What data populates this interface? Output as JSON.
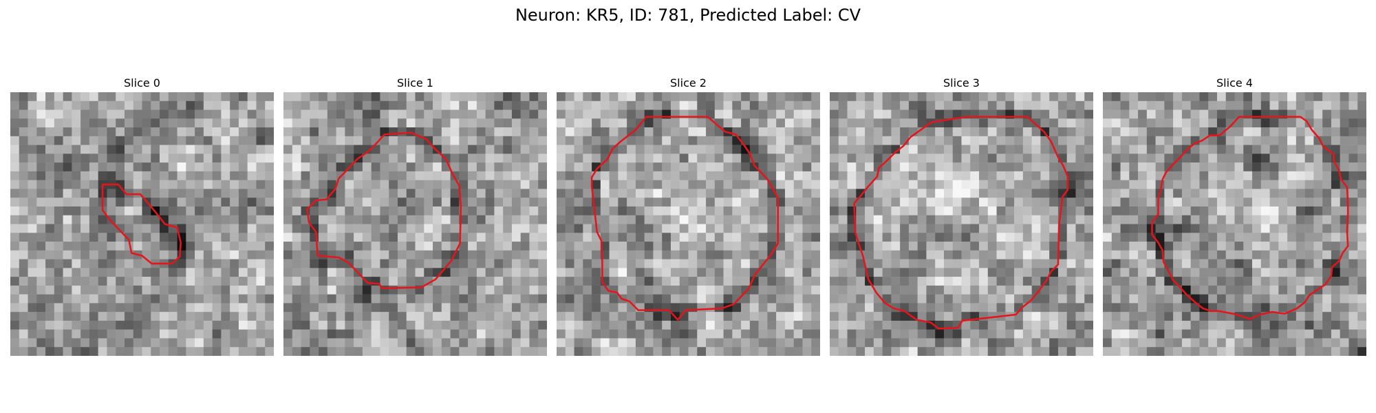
{
  "figure": {
    "title": "Neuron: KR5, ID: 781, Predicted Label: CV"
  },
  "panels": [
    {
      "title": "Slice 0"
    },
    {
      "title": "Slice 1"
    },
    {
      "title": "Slice 2"
    },
    {
      "title": "Slice 3"
    },
    {
      "title": "Slice 4"
    }
  ],
  "colors": {
    "contour": "#e8141b"
  }
}
